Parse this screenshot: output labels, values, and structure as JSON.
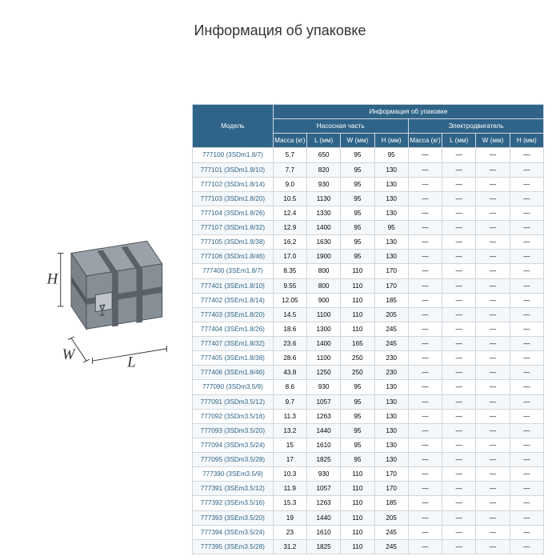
{
  "title": "Информация об упаковке",
  "table": {
    "header_main": "Информация об упаковке",
    "model_label": "Модель",
    "pump_label": "Насосная часть",
    "motor_label": "Электродвигатель",
    "cols": [
      "Масса (кг)",
      "L (мм)",
      "W (мм)",
      "H (мм)",
      "Масса (кг)",
      "L (мм)",
      "W (мм)",
      "H (мм)"
    ],
    "rows": [
      [
        "777100 (3SDm1.8/7)",
        "5.7",
        "650",
        "95",
        "95",
        "—",
        "—",
        "—",
        "—"
      ],
      [
        "777101 (3SDm1.8/10)",
        "7.7",
        "820",
        "95",
        "130",
        "—",
        "—",
        "—",
        "—"
      ],
      [
        "777102 (3SDm1.8/14)",
        "9.0",
        "930",
        "95",
        "130",
        "—",
        "—",
        "—",
        "—"
      ],
      [
        "777103 (3SDm1.8/20)",
        "10.5",
        "1130",
        "95",
        "130",
        "—",
        "—",
        "—",
        "—"
      ],
      [
        "777104 (3SDm1.8/26)",
        "12.4",
        "1330",
        "95",
        "130",
        "—",
        "—",
        "—",
        "—"
      ],
      [
        "777107 (3SDm1.8/32)",
        "12.9",
        "1400",
        "95",
        "95",
        "—",
        "—",
        "—",
        "—"
      ],
      [
        "777105 (3SDm1.8/38)",
        "16.2",
        "1630",
        "95",
        "130",
        "—",
        "—",
        "—",
        "—"
      ],
      [
        "777106 (3SDm1.8/46)",
        "17.0",
        "1900",
        "95",
        "130",
        "—",
        "—",
        "—",
        "—"
      ],
      [
        "777400 (3SEm1.8/7)",
        "8.35",
        "800",
        "110",
        "170",
        "—",
        "—",
        "—",
        "—"
      ],
      [
        "777401 (3SEm1.8/10)",
        "9.55",
        "800",
        "110",
        "170",
        "—",
        "—",
        "—",
        "—"
      ],
      [
        "777402 (3SEm1.8/14)",
        "12.05",
        "900",
        "110",
        "185",
        "—",
        "—",
        "—",
        "—"
      ],
      [
        "777403 (3SEm1.8/20)",
        "14.5",
        "1100",
        "110",
        "205",
        "—",
        "—",
        "—",
        "—"
      ],
      [
        "777404 (3SEm1.8/26)",
        "18.6",
        "1300",
        "110",
        "245",
        "—",
        "—",
        "—",
        "—"
      ],
      [
        "777407 (3SEm1.8/32)",
        "23.6",
        "1400",
        "165",
        "245",
        "—",
        "—",
        "—",
        "—"
      ],
      [
        "777405 (3SEm1.8/38)",
        "28.6",
        "1100",
        "250",
        "230",
        "—",
        "—",
        "—",
        "—"
      ],
      [
        "777406 (3SEm1.8/46)",
        "43.8",
        "1250",
        "250",
        "230",
        "—",
        "—",
        "—",
        "—"
      ],
      [
        "777090 (3SDm3.5/9)",
        "8.6",
        "930",
        "95",
        "130",
        "—",
        "—",
        "—",
        "—"
      ],
      [
        "777091 (3SDm3.5/12)",
        "9.7",
        "1057",
        "95",
        "130",
        "—",
        "—",
        "—",
        "—"
      ],
      [
        "777092 (3SDm3.5/16)",
        "11.3",
        "1263",
        "95",
        "130",
        "—",
        "—",
        "—",
        "—"
      ],
      [
        "777093 (3SDm3.5/20)",
        "13.2",
        "1440",
        "95",
        "130",
        "—",
        "—",
        "—",
        "—"
      ],
      [
        "777094 (3SDm3.5/24)",
        "15",
        "1610",
        "95",
        "130",
        "—",
        "—",
        "—",
        "—"
      ],
      [
        "777095 (3SDm3.5/28)",
        "17",
        "1825",
        "95",
        "130",
        "—",
        "—",
        "—",
        "—"
      ],
      [
        "777390 (3SEm3.5/9)",
        "10.3",
        "930",
        "110",
        "170",
        "—",
        "—",
        "—",
        "—"
      ],
      [
        "777391 (3SEm3.5/12)",
        "11.9",
        "1057",
        "110",
        "170",
        "—",
        "—",
        "—",
        "—"
      ],
      [
        "777392 (3SEm3.5/16)",
        "15.3",
        "1263",
        "110",
        "185",
        "—",
        "—",
        "—",
        "—"
      ],
      [
        "777393 (3SEm3.5/20)",
        "19",
        "1440",
        "110",
        "205",
        "—",
        "—",
        "—",
        "—"
      ],
      [
        "777394 (3SEm3.5/24)",
        "23",
        "1610",
        "110",
        "245",
        "—",
        "—",
        "—",
        "—"
      ],
      [
        "777395 (3SEm3.5/28)",
        "31.2",
        "1825",
        "110",
        "245",
        "—",
        "—",
        "—",
        "—"
      ]
    ]
  },
  "box": {
    "labels": {
      "H": "H",
      "W": "W",
      "L": "L"
    },
    "colors": {
      "top": "#9aa1a8",
      "left": "#7a828a",
      "right": "#868e96",
      "strap": "#5a6168",
      "outline": "#4a5056"
    }
  },
  "colors": {
    "header_bg": "#2f6488",
    "header_fg": "#ffffff",
    "border": "#d0d6dc",
    "model_fg": "#2f6488",
    "zebra": "#f5f8fa"
  }
}
